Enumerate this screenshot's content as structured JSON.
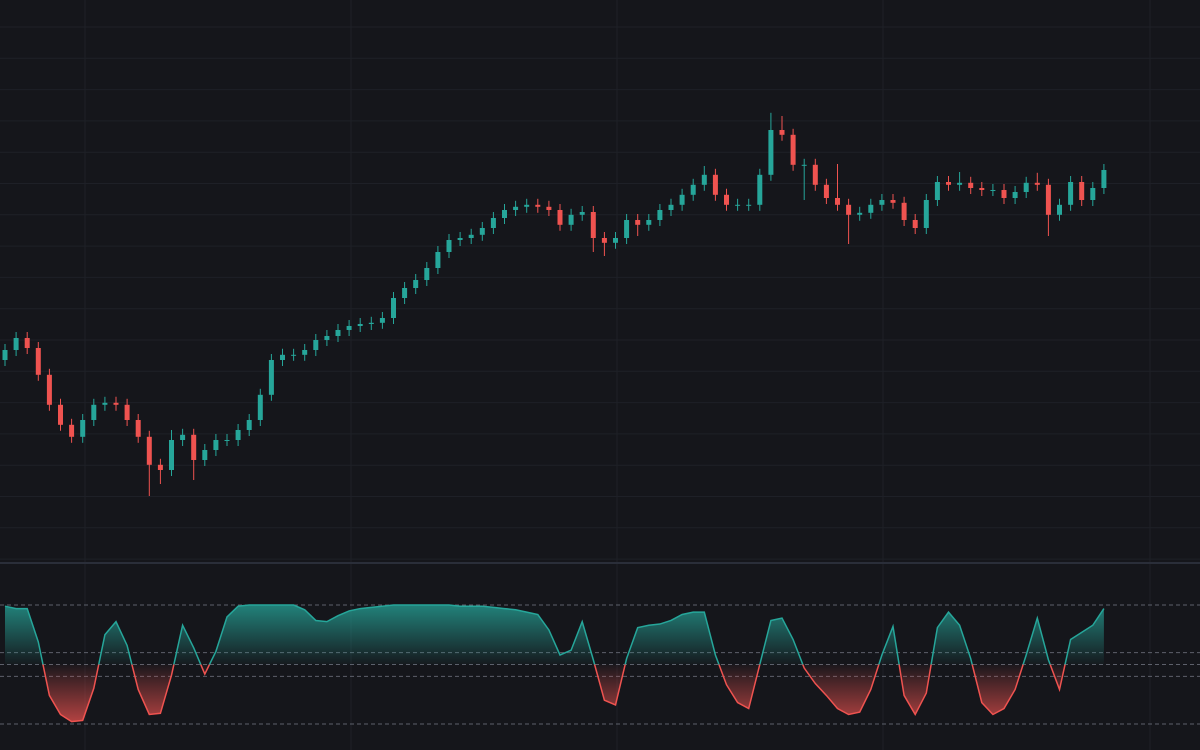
{
  "chart_data": [
    {
      "type": "candlestick",
      "up_color": "#26a69a",
      "down_color": "#ef5350",
      "ylim": [
        0,
        140
      ],
      "open": [
        50,
        52.5,
        55.5,
        53,
        46.3,
        38.8,
        33.8,
        30.8,
        35,
        38.8,
        39.3,
        38.8,
        35,
        30.8,
        23.8,
        22.5,
        30,
        31.3,
        25,
        27.5,
        30,
        30,
        32.5,
        35,
        41.3,
        50,
        51.3,
        51.3,
        52.5,
        55,
        56,
        57.5,
        58.5,
        59,
        59.3,
        60.5,
        65.5,
        68,
        70,
        73,
        77,
        80,
        80.5,
        81.3,
        83,
        85.5,
        87.5,
        88.3,
        88.8,
        88.3,
        87.5,
        83.8,
        86.3,
        87,
        80.5,
        79.3,
        80.5,
        85,
        83.8,
        85,
        87.5,
        88.8,
        91.3,
        93.8,
        96.3,
        91.3,
        88.8,
        88.8,
        88.8,
        96.3,
        107.5,
        106.3,
        98.8,
        98.8,
        93.8,
        90.5,
        88.8,
        86.3,
        86.8,
        88.8,
        90,
        89.3,
        85,
        83,
        90,
        94.5,
        93.8,
        94.3,
        93,
        92.5,
        92.5,
        90.5,
        92,
        94.3,
        93.8,
        86.3,
        88.8,
        94.5,
        90,
        93
      ],
      "high": [
        54,
        57,
        57,
        54.5,
        47.8,
        40.3,
        35.3,
        36.5,
        40.3,
        40.8,
        40.8,
        40.3,
        36.5,
        32.3,
        25.3,
        32.5,
        32.8,
        32.8,
        29,
        31.5,
        31.5,
        34,
        36.5,
        42.8,
        51.5,
        52.8,
        52.8,
        54,
        56.5,
        57.5,
        59,
        60,
        60.5,
        60.8,
        62,
        67,
        69.5,
        71.5,
        74.5,
        78.5,
        81.5,
        82,
        82.8,
        84.5,
        87,
        89,
        89.8,
        90.3,
        90.3,
        89.8,
        89,
        87.8,
        88.5,
        88.5,
        82,
        82,
        86.5,
        86.5,
        86.5,
        89,
        90.3,
        92.8,
        95.3,
        98.5,
        97.8,
        92.8,
        90.3,
        90.3,
        97.8,
        111.8,
        111,
        107.8,
        100.3,
        100.3,
        95.3,
        99,
        90.3,
        88.3,
        90.3,
        91.5,
        91.5,
        90.8,
        86.5,
        91.5,
        96,
        96,
        97,
        95.8,
        94.5,
        94,
        94,
        93.5,
        95.8,
        96.8,
        95.3,
        90.3,
        96,
        96,
        94.5,
        99
      ],
      "low": [
        48.5,
        51,
        51.5,
        44.8,
        37.3,
        32.3,
        29.3,
        29.3,
        33.5,
        37.3,
        37.3,
        33.5,
        29.3,
        16,
        19,
        21,
        28.5,
        20,
        23.5,
        26,
        28.5,
        28.5,
        31,
        33.5,
        39.8,
        48.5,
        49.8,
        49.8,
        51,
        53.5,
        54.5,
        56,
        57,
        57.5,
        57.8,
        59,
        64,
        66.5,
        68.5,
        71.5,
        75.5,
        78.5,
        79,
        79.8,
        81.5,
        84,
        86,
        86.8,
        86.8,
        86,
        82.3,
        82.3,
        84.8,
        77,
        76,
        77.8,
        79,
        81,
        82.3,
        83.5,
        86,
        87.3,
        89.8,
        92.3,
        89.8,
        87.3,
        87.3,
        87.3,
        87.3,
        94.8,
        104.8,
        97.3,
        90,
        92.3,
        89,
        87.3,
        79,
        84.8,
        85.3,
        87.3,
        87.8,
        83.5,
        81.5,
        81.5,
        88.5,
        92.3,
        92.3,
        91.5,
        91,
        91,
        89,
        89,
        90.5,
        92.3,
        81,
        84.8,
        87.3,
        88.5,
        88.5,
        91.5
      ],
      "close": [
        52.5,
        55.5,
        53,
        46.3,
        38.8,
        33.8,
        30.8,
        35,
        38.8,
        39.3,
        38.8,
        35,
        30.8,
        23.8,
        22.5,
        30,
        31.3,
        25,
        27.5,
        30,
        30,
        32.5,
        35,
        41.3,
        50,
        51.3,
        51.3,
        52.5,
        55,
        56,
        57.5,
        58.5,
        59,
        59.3,
        60.5,
        65.5,
        68,
        70,
        73,
        77,
        80,
        80.5,
        81.3,
        83,
        85.5,
        87.5,
        88.3,
        88.8,
        88.3,
        87.5,
        83.8,
        86.3,
        87,
        80.5,
        79.3,
        80.5,
        85,
        83.8,
        85,
        87.5,
        88.8,
        91.3,
        93.8,
        96.3,
        91.3,
        88.8,
        88.8,
        88.8,
        96.3,
        107.5,
        106.3,
        98.8,
        98.8,
        93.8,
        90.5,
        88.8,
        86.3,
        86.8,
        88.8,
        90,
        89.3,
        85,
        83,
        90,
        94.5,
        93.8,
        94.3,
        93,
        92.5,
        92.5,
        90.5,
        92,
        94.3,
        93.8,
        86.3,
        88.8,
        94.5,
        90,
        93,
        97.5
      ]
    },
    {
      "type": "oscillator",
      "up_color": "#26a69a",
      "down_color": "#ef5350",
      "ylim": [
        0,
        100
      ],
      "midline": 50,
      "levels": [
        100,
        60,
        50,
        40,
        0
      ],
      "values": [
        99,
        97,
        97,
        69,
        24,
        8,
        2,
        3,
        30,
        75,
        86,
        66,
        29,
        8,
        9,
        41,
        83,
        64,
        42,
        61,
        90,
        99,
        100,
        100,
        100,
        100,
        100,
        96,
        87,
        86,
        91,
        95,
        97,
        98,
        99,
        100,
        100,
        100,
        100,
        100,
        100,
        99,
        99,
        99,
        98,
        97,
        96,
        94,
        92,
        79,
        58,
        62,
        86,
        54,
        20,
        16,
        55,
        81,
        83,
        84,
        87,
        92,
        94,
        94,
        58,
        33,
        18,
        13,
        50,
        87,
        89,
        71,
        47,
        34,
        24,
        13,
        8,
        10,
        29,
        58,
        82,
        24,
        8,
        26,
        81,
        94,
        83,
        55,
        18,
        8,
        13,
        29,
        58,
        89,
        54,
        29,
        71,
        77,
        83,
        97
      ]
    }
  ]
}
